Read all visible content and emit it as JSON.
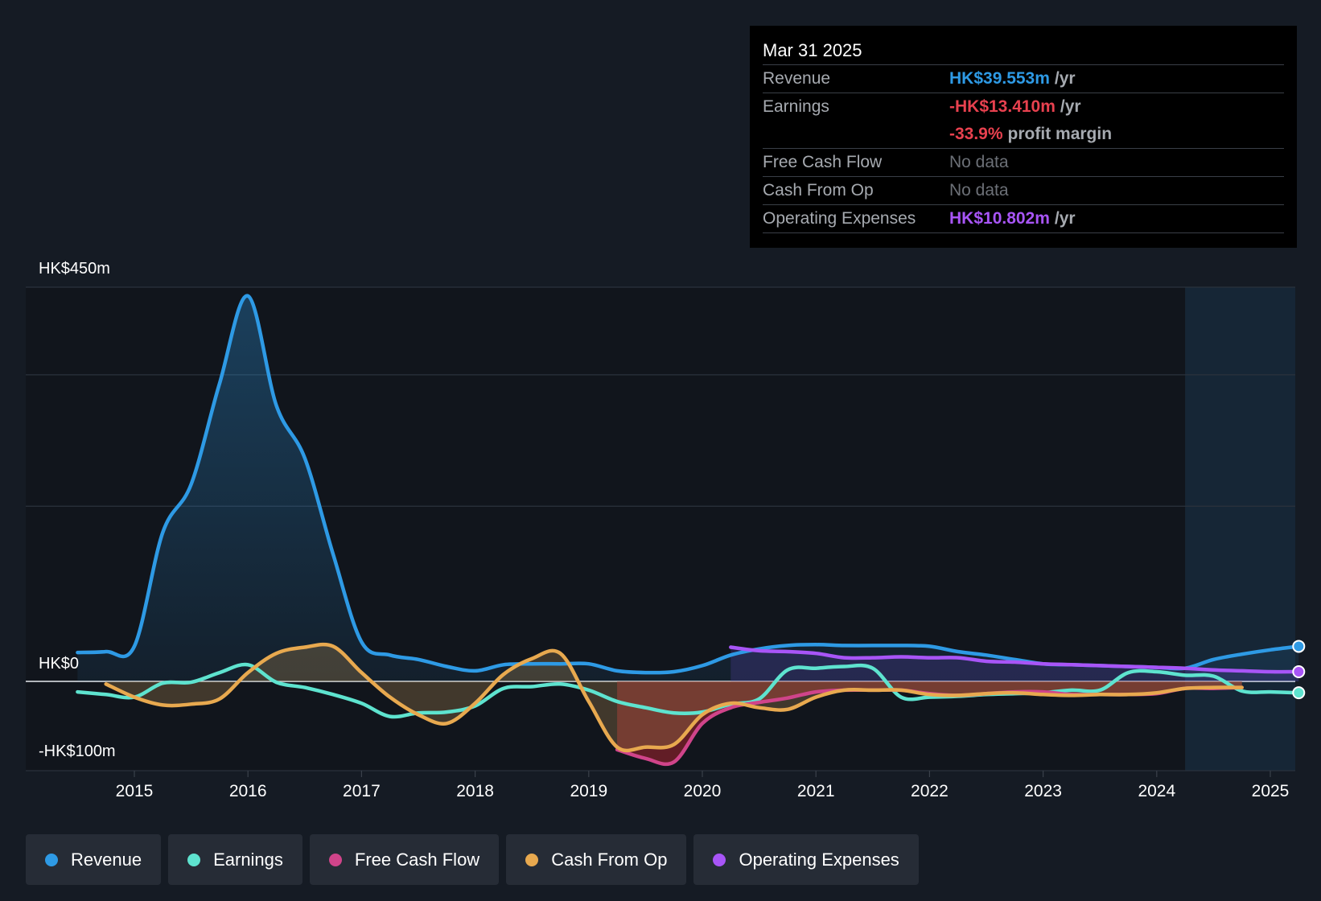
{
  "tooltip": {
    "date": "Mar 31 2025",
    "rows": [
      {
        "label": "Revenue",
        "value": "HK$39.553m",
        "unit": "/yr",
        "color": "#2e9ae5"
      },
      {
        "label": "Earnings",
        "value": "-HK$13.410m",
        "unit": "/yr",
        "color": "#e8414f"
      },
      {
        "label": "",
        "value": "-33.9%",
        "unit": "profit margin",
        "color": "#e8414f"
      },
      {
        "label": "Free Cash Flow",
        "value": "No data",
        "unit": "",
        "color": "#6c7077"
      },
      {
        "label": "Cash From Op",
        "value": "No data",
        "unit": "",
        "color": "#6c7077"
      },
      {
        "label": "Operating Expenses",
        "value": "HK$10.802m",
        "unit": "/yr",
        "color": "#a855f7"
      }
    ]
  },
  "legend": [
    {
      "label": "Revenue",
      "color": "#2e9ae5"
    },
    {
      "label": "Earnings",
      "color": "#5ee3cf"
    },
    {
      "label": "Free Cash Flow",
      "color": "#d0448a"
    },
    {
      "label": "Cash From Op",
      "color": "#e8a94f"
    },
    {
      "label": "Operating Expenses",
      "color": "#a855f7"
    }
  ],
  "chart_data": {
    "type": "line",
    "y_axis_labels": {
      "top": "HK$450m",
      "zero": "HK$0",
      "bottom": "-HK$100m"
    },
    "ylim": [
      -100,
      450
    ],
    "xlim": [
      2014.5,
      2025.25
    ],
    "x_ticks": [
      "2015",
      "2016",
      "2017",
      "2018",
      "2019",
      "2020",
      "2021",
      "2022",
      "2023",
      "2024",
      "2025"
    ],
    "grid": true,
    "forecast_start": 2024.25,
    "series": [
      {
        "name": "Revenue",
        "color": "#2e9ae5",
        "fill": true,
        "points": [
          [
            2014.5,
            33
          ],
          [
            2014.75,
            34
          ],
          [
            2015,
            40
          ],
          [
            2015.25,
            170
          ],
          [
            2015.5,
            225
          ],
          [
            2015.75,
            340
          ],
          [
            2016,
            440
          ],
          [
            2016.25,
            315
          ],
          [
            2016.5,
            255
          ],
          [
            2016.75,
            145
          ],
          [
            2017,
            45
          ],
          [
            2017.25,
            30
          ],
          [
            2017.5,
            25
          ],
          [
            2017.75,
            17
          ],
          [
            2018,
            12
          ],
          [
            2018.25,
            19
          ],
          [
            2018.5,
            20
          ],
          [
            2018.75,
            20
          ],
          [
            2019,
            20
          ],
          [
            2019.25,
            12
          ],
          [
            2019.5,
            10
          ],
          [
            2019.75,
            11
          ],
          [
            2020,
            18
          ],
          [
            2020.25,
            30
          ],
          [
            2020.5,
            37
          ],
          [
            2020.75,
            41
          ],
          [
            2021,
            42
          ],
          [
            2021.25,
            41
          ],
          [
            2021.5,
            41
          ],
          [
            2021.75,
            41
          ],
          [
            2022,
            40
          ],
          [
            2022.25,
            34
          ],
          [
            2022.5,
            30
          ],
          [
            2022.75,
            25
          ],
          [
            2023,
            20
          ],
          [
            2023.25,
            19
          ],
          [
            2023.5,
            18
          ],
          [
            2023.75,
            17
          ],
          [
            2024,
            16
          ],
          [
            2024.25,
            15
          ],
          [
            2024.5,
            25
          ],
          [
            2024.75,
            31
          ],
          [
            2025,
            36
          ],
          [
            2025.25,
            40
          ]
        ]
      },
      {
        "name": "Earnings",
        "color": "#5ee3cf",
        "fill": false,
        "points": [
          [
            2014.5,
            -12
          ],
          [
            2014.75,
            -15
          ],
          [
            2015,
            -18
          ],
          [
            2015.25,
            -2
          ],
          [
            2015.5,
            -1
          ],
          [
            2015.75,
            10
          ],
          [
            2016,
            19
          ],
          [
            2016.25,
            -1
          ],
          [
            2016.5,
            -7
          ],
          [
            2016.75,
            -15
          ],
          [
            2017,
            -25
          ],
          [
            2017.25,
            -40
          ],
          [
            2017.5,
            -36
          ],
          [
            2017.75,
            -35
          ],
          [
            2018,
            -28
          ],
          [
            2018.25,
            -8
          ],
          [
            2018.5,
            -6
          ],
          [
            2018.75,
            -3
          ],
          [
            2019,
            -10
          ],
          [
            2019.25,
            -23
          ],
          [
            2019.5,
            -30
          ],
          [
            2019.75,
            -36
          ],
          [
            2020,
            -35
          ],
          [
            2020.25,
            -26
          ],
          [
            2020.5,
            -20
          ],
          [
            2020.75,
            13
          ],
          [
            2021,
            15
          ],
          [
            2021.25,
            17
          ],
          [
            2021.5,
            15
          ],
          [
            2021.75,
            -18
          ],
          [
            2022,
            -18
          ],
          [
            2022.25,
            -17
          ],
          [
            2022.5,
            -15
          ],
          [
            2022.75,
            -14
          ],
          [
            2023,
            -13
          ],
          [
            2023.25,
            -10
          ],
          [
            2023.5,
            -10
          ],
          [
            2023.75,
            10
          ],
          [
            2024,
            11
          ],
          [
            2024.25,
            7
          ],
          [
            2024.5,
            6
          ],
          [
            2024.75,
            -11
          ],
          [
            2025,
            -12
          ],
          [
            2025.25,
            -13
          ]
        ]
      },
      {
        "name": "Free Cash Flow",
        "color": "#d0448a",
        "fill": true,
        "points": [
          [
            2019.25,
            -78
          ],
          [
            2019.5,
            -88
          ],
          [
            2019.75,
            -92
          ],
          [
            2020,
            -48
          ],
          [
            2020.25,
            -30
          ],
          [
            2020.5,
            -24
          ],
          [
            2020.75,
            -19
          ],
          [
            2021,
            -12
          ],
          [
            2021.25,
            -10
          ],
          [
            2021.5,
            -10
          ],
          [
            2021.75,
            -10
          ],
          [
            2022,
            -14
          ],
          [
            2022.25,
            -16
          ],
          [
            2022.5,
            -14
          ],
          [
            2022.75,
            -12
          ],
          [
            2023,
            -12
          ],
          [
            2023.25,
            -15
          ],
          [
            2023.5,
            -15
          ],
          [
            2023.75,
            -15
          ],
          [
            2024,
            -14
          ],
          [
            2024.25,
            -8
          ],
          [
            2024.5,
            -8
          ],
          [
            2024.75,
            -7
          ]
        ]
      },
      {
        "name": "Cash From Op",
        "color": "#e8a94f",
        "fill": true,
        "points": [
          [
            2014.75,
            -3
          ],
          [
            2015,
            -18
          ],
          [
            2015.25,
            -27
          ],
          [
            2015.5,
            -26
          ],
          [
            2015.75,
            -20
          ],
          [
            2016,
            10
          ],
          [
            2016.25,
            32
          ],
          [
            2016.5,
            39
          ],
          [
            2016.75,
            40
          ],
          [
            2017,
            10
          ],
          [
            2017.25,
            -18
          ],
          [
            2017.5,
            -38
          ],
          [
            2017.75,
            -48
          ],
          [
            2018,
            -25
          ],
          [
            2018.25,
            8
          ],
          [
            2018.5,
            26
          ],
          [
            2018.75,
            32
          ],
          [
            2019,
            -23
          ],
          [
            2019.25,
            -75
          ],
          [
            2019.5,
            -75
          ],
          [
            2019.75,
            -72
          ],
          [
            2020,
            -38
          ],
          [
            2020.25,
            -25
          ],
          [
            2020.5,
            -30
          ],
          [
            2020.75,
            -32
          ],
          [
            2021,
            -18
          ],
          [
            2021.25,
            -10
          ],
          [
            2021.5,
            -10
          ],
          [
            2021.75,
            -10
          ],
          [
            2022,
            -15
          ],
          [
            2022.25,
            -16
          ],
          [
            2022.5,
            -14
          ],
          [
            2022.75,
            -13
          ],
          [
            2023,
            -15
          ],
          [
            2023.25,
            -16
          ],
          [
            2023.5,
            -15
          ],
          [
            2023.75,
            -15
          ],
          [
            2024,
            -13
          ],
          [
            2024.25,
            -8
          ],
          [
            2024.5,
            -7
          ],
          [
            2024.75,
            -7
          ]
        ]
      },
      {
        "name": "Operating Expenses",
        "color": "#a855f7",
        "fill": true,
        "points": [
          [
            2020.25,
            39
          ],
          [
            2020.5,
            35
          ],
          [
            2020.75,
            34
          ],
          [
            2021,
            32
          ],
          [
            2021.25,
            27
          ],
          [
            2021.5,
            27
          ],
          [
            2021.75,
            28
          ],
          [
            2022,
            27
          ],
          [
            2022.25,
            27
          ],
          [
            2022.5,
            23
          ],
          [
            2022.75,
            22
          ],
          [
            2023,
            20
          ],
          [
            2023.25,
            19
          ],
          [
            2023.5,
            18
          ],
          [
            2023.75,
            17
          ],
          [
            2024,
            16
          ],
          [
            2024.25,
            15
          ],
          [
            2024.5,
            13
          ],
          [
            2024.75,
            12
          ],
          [
            2025,
            11
          ],
          [
            2025.25,
            11
          ]
        ]
      }
    ]
  }
}
